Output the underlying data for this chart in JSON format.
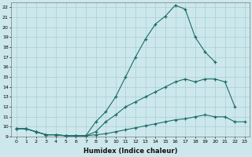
{
  "xlabel": "Humidex (Indice chaleur)",
  "ylabel": "",
  "xlim": [
    -0.5,
    23.5
  ],
  "ylim": [
    9,
    22.5
  ],
  "xticks": [
    0,
    1,
    2,
    3,
    4,
    5,
    6,
    7,
    8,
    9,
    10,
    11,
    12,
    13,
    14,
    15,
    16,
    17,
    18,
    19,
    20,
    21,
    22,
    23
  ],
  "yticks": [
    9,
    10,
    11,
    12,
    13,
    14,
    15,
    16,
    17,
    18,
    19,
    20,
    21,
    22
  ],
  "bg_color": "#cde8ec",
  "line_color": "#1a6b6b",
  "grid_color": "#aacdd4",
  "line1_x": [
    0,
    1,
    2,
    3,
    4,
    5,
    6,
    7,
    8,
    9,
    10,
    11,
    12,
    13,
    14,
    15,
    16,
    17,
    18,
    19,
    20
  ],
  "line1_y": [
    9.8,
    9.8,
    9.5,
    9.2,
    9.2,
    9.1,
    9.1,
    9.1,
    10.5,
    11.5,
    13.0,
    15.0,
    17.0,
    18.8,
    20.3,
    21.1,
    22.2,
    21.8,
    19.0,
    17.5,
    16.5
  ],
  "line2_x": [
    0,
    1,
    2,
    3,
    4,
    5,
    6,
    7,
    8,
    9,
    10,
    11,
    12,
    13,
    14,
    15,
    16,
    17,
    18,
    19,
    20,
    21,
    22
  ],
  "line2_y": [
    9.8,
    9.8,
    9.5,
    9.2,
    9.2,
    9.1,
    9.1,
    9.1,
    9.5,
    10.5,
    11.2,
    12.0,
    12.5,
    13.0,
    13.5,
    14.0,
    14.5,
    14.8,
    14.5,
    14.8,
    14.8,
    14.5,
    12.0
  ],
  "line3_x": [
    0,
    1,
    2,
    3,
    4,
    5,
    6,
    7,
    8,
    9,
    10,
    11,
    12,
    13,
    14,
    15,
    16,
    17,
    18,
    19,
    20,
    21,
    22,
    23
  ],
  "line3_y": [
    9.8,
    9.8,
    9.5,
    9.2,
    9.2,
    9.1,
    9.1,
    9.1,
    9.2,
    9.3,
    9.5,
    9.7,
    9.9,
    10.1,
    10.3,
    10.5,
    10.7,
    10.8,
    11.0,
    11.2,
    11.0,
    11.0,
    10.5,
    10.5
  ]
}
